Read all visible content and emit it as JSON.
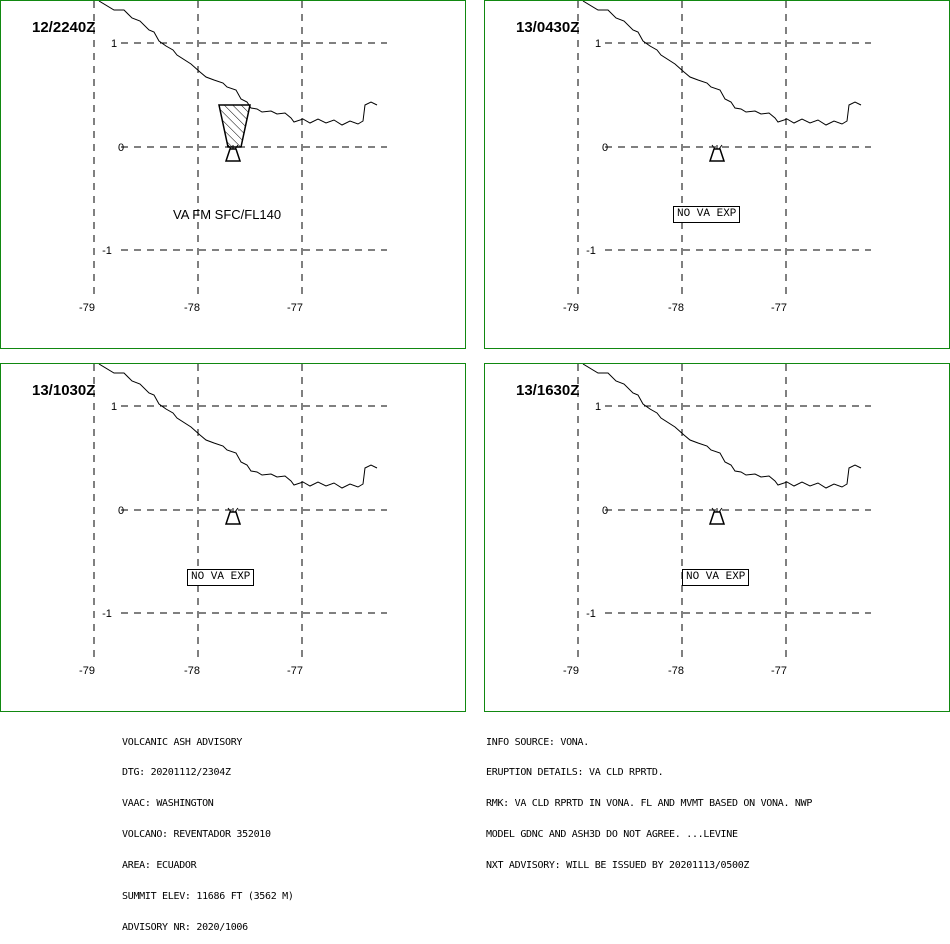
{
  "panels": [
    {
      "time": "12/2240Z",
      "note": "VA FM SFC/FL140",
      "note_style": "plain",
      "has_ash_cloud": true
    },
    {
      "time": "13/0430Z",
      "note": "NO VA EXP",
      "note_style": "boxed",
      "has_ash_cloud": false
    },
    {
      "time": "13/1030Z",
      "note": "NO VA EXP",
      "note_style": "boxed",
      "has_ash_cloud": false
    },
    {
      "time": "13/1630Z",
      "note": "NO VA EXP",
      "note_style": "boxed",
      "has_ash_cloud": false
    }
  ],
  "axes": {
    "lat_labels": [
      "1",
      "0",
      "-1"
    ],
    "lon_labels": [
      "-79",
      "-78",
      "-77"
    ]
  },
  "advisory_left": [
    "VOLCANIC ASH ADVISORY",
    "DTG: 20201112/2304Z",
    "VAAC: WASHINGTON",
    "VOLCANO: REVENTADOR 352010",
    "AREA: ECUADOR",
    "SUMMIT ELEV: 11686 FT (3562 M)",
    "ADVISORY NR: 2020/1006"
  ],
  "advisory_right": [
    "INFO SOURCE: VONA.",
    "ERUPTION DETAILS: VA CLD RPRTD.",
    "RMK: VA CLD RPRTD IN VONA. FL AND MVMT BASED ON VONA. NWP",
    "MODEL GDNC AND ASH3D DO NOT AGREE. ...LEVINE",
    "NXT ADVISORY: WILL BE ISSUED BY 20201113/0500Z"
  ],
  "colors": {
    "panel_border": "#118811",
    "ink": "#000000",
    "background": "#ffffff"
  },
  "icons": {
    "volcano": "volcano-icon",
    "ash_cloud": "ash-cloud-polygon"
  }
}
